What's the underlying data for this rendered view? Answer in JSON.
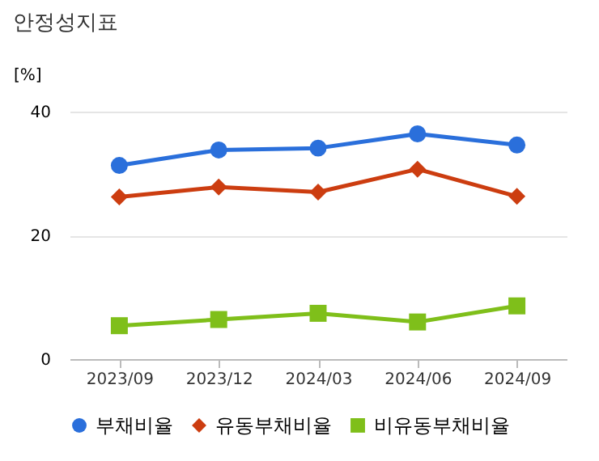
{
  "chart_data": {
    "type": "line",
    "title": "안정성지표",
    "ylabel": "[%]",
    "categories": [
      "2023/09",
      "2023/12",
      "2024/03",
      "2024/06",
      "2024/09"
    ],
    "series": [
      {
        "name": "부채비율",
        "color": "#2a6fdb",
        "marker": "circle",
        "values": [
          31.3,
          33.8,
          34.1,
          36.4,
          34.6
        ]
      },
      {
        "name": "유동부채비율",
        "color": "#cc3d10",
        "marker": "diamond",
        "values": [
          26.2,
          27.8,
          27.0,
          30.7,
          26.3
        ]
      },
      {
        "name": "비유동부채비율",
        "color": "#7fbf1a",
        "marker": "square",
        "values": [
          5.4,
          6.4,
          7.4,
          6.0,
          8.6
        ]
      }
    ],
    "ylim": [
      0,
      40
    ],
    "yticks": [
      0,
      20,
      40
    ],
    "grid": "y",
    "legend": "bottom",
    "line_style": "solid"
  }
}
